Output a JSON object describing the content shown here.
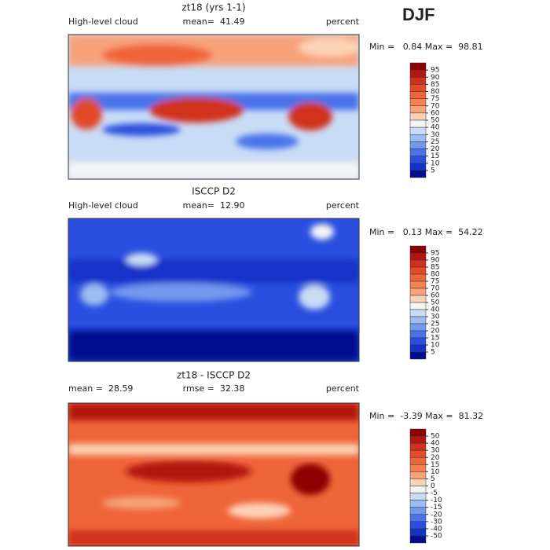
{
  "figure_label": "DJF",
  "panels": [
    {
      "title": "zt18 (yrs 1-1)",
      "left_text": "High-level cloud",
      "center_text": "mean=  41.49",
      "right_text": "percent",
      "range_text": "Min =   0.84 Max =  98.81",
      "colorbar": {
        "levels": [
          95,
          90,
          85,
          80,
          75,
          70,
          60,
          50,
          40,
          30,
          25,
          20,
          15,
          10,
          5
        ],
        "colors": [
          "#8b0000",
          "#b3150f",
          "#d0301c",
          "#e24a2a",
          "#ef653a",
          "#f4814f",
          "#f8a27a",
          "#fcd2b6",
          "#f4f4f4",
          "#c9dcf6",
          "#9dbdf2",
          "#7399ee",
          "#4a73ea",
          "#2a4fe0",
          "#1432c8",
          "#000e8f"
        ]
      }
    },
    {
      "title": "ISCCP D2",
      "left_text": "High-level cloud",
      "center_text": "mean=  12.90",
      "right_text": "percent",
      "range_text": "Min =   0.13 Max =  54.22",
      "colorbar": {
        "levels": [
          95,
          90,
          85,
          80,
          75,
          70,
          60,
          50,
          40,
          30,
          25,
          20,
          15,
          10,
          5
        ],
        "colors": [
          "#8b0000",
          "#b3150f",
          "#d0301c",
          "#e24a2a",
          "#ef653a",
          "#f4814f",
          "#f8a27a",
          "#fcd2b6",
          "#f4f4f4",
          "#c9dcf6",
          "#9dbdf2",
          "#7399ee",
          "#4a73ea",
          "#2a4fe0",
          "#1432c8",
          "#000e8f"
        ]
      }
    },
    {
      "title": "zt18 - ISCCP D2",
      "left_text": "mean =  28.59",
      "center_text": "rmse =  32.38",
      "right_text": "percent",
      "range_text": "Min =  -3.39 Max =  81.32",
      "colorbar": {
        "levels": [
          50,
          40,
          30,
          20,
          15,
          10,
          5,
          0,
          -5,
          -10,
          -15,
          -20,
          -30,
          -40,
          -50
        ],
        "colors": [
          "#8b0000",
          "#b3150f",
          "#d0301c",
          "#e24a2a",
          "#ef653a",
          "#f4814f",
          "#f8a27a",
          "#fcd2b6",
          "#f4f4f4",
          "#c9dcf6",
          "#9dbdf2",
          "#7399ee",
          "#4a73ea",
          "#2a4fe0",
          "#1432c8",
          "#000e8f"
        ]
      }
    }
  ]
}
